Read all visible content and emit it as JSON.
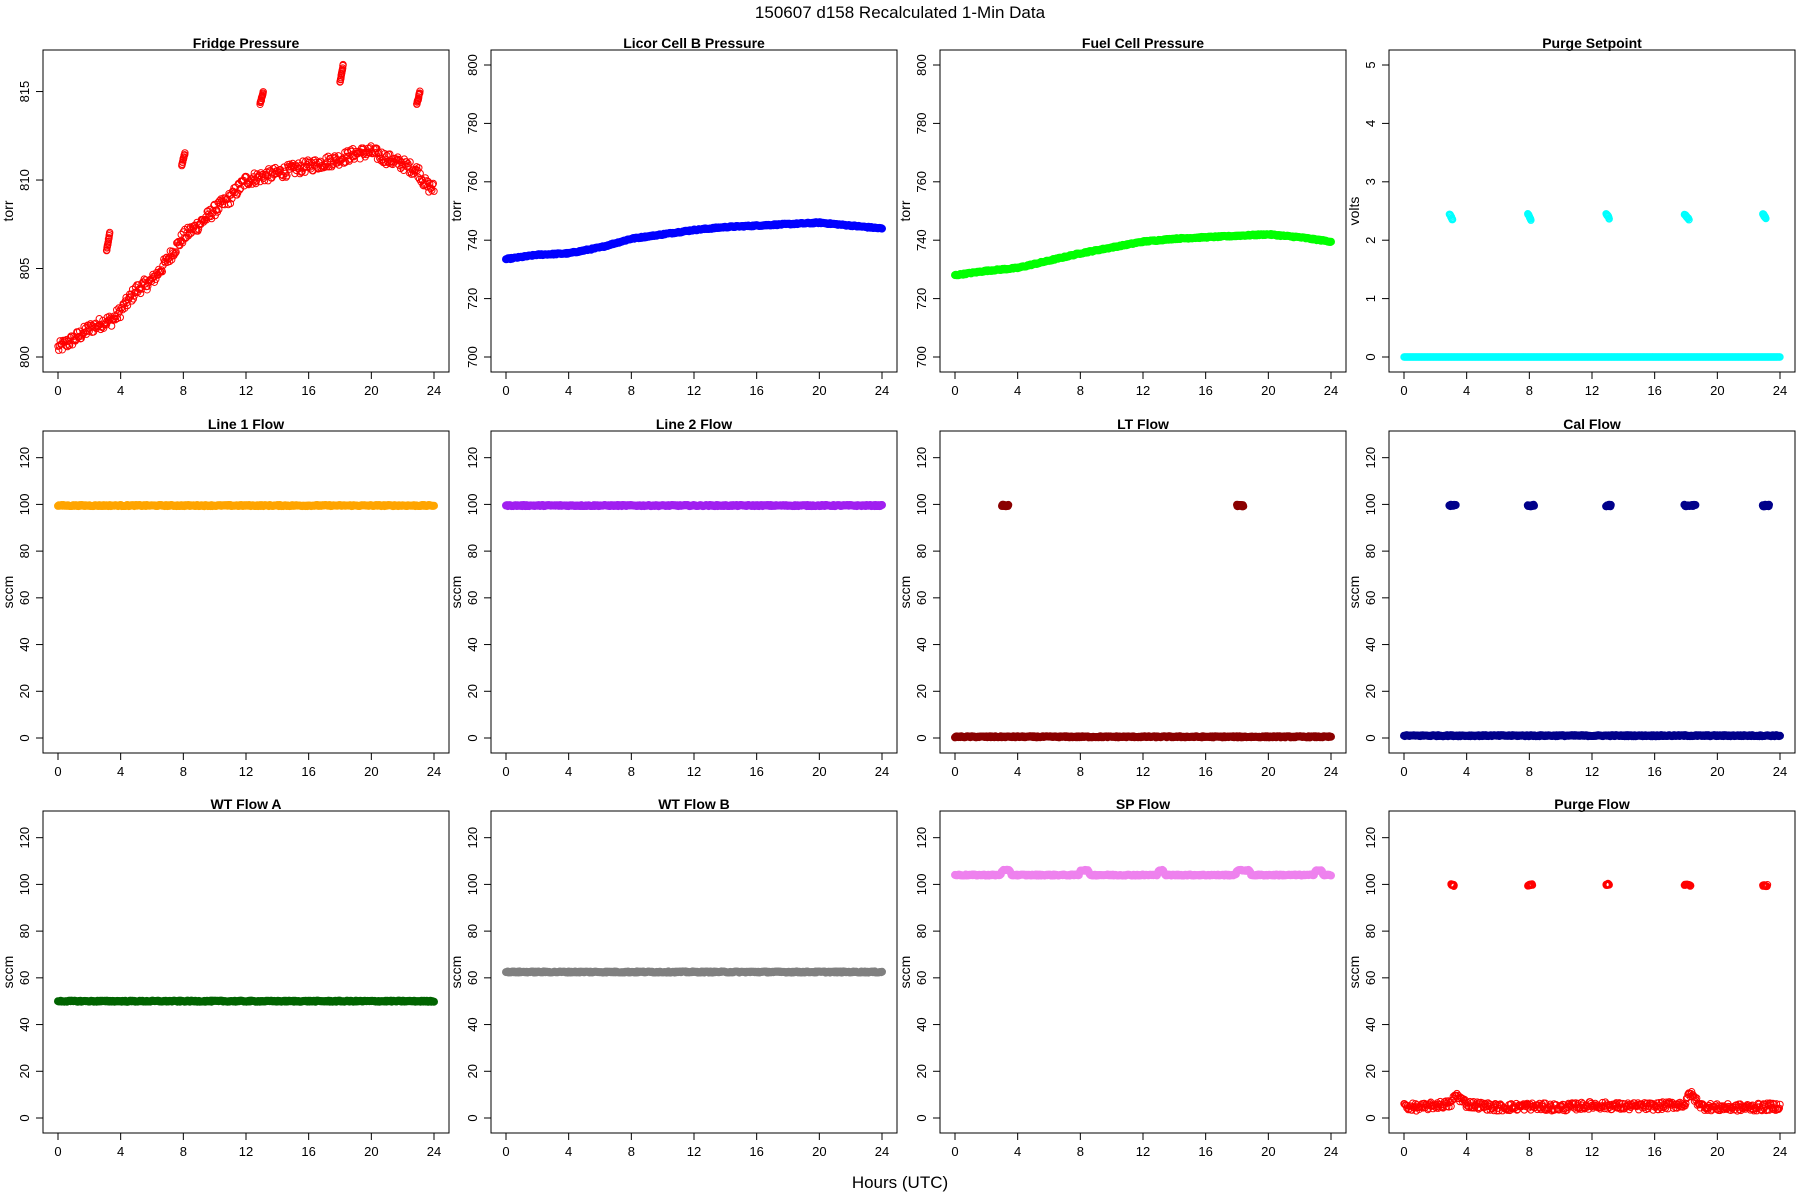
{
  "title": "150607   d158   Recalculated 1-Min Data",
  "xlabel": "Hours (UTC)",
  "chart_data": [
    {
      "type": "scatter",
      "title": "Fridge Pressure",
      "ylabel": "torr",
      "xlim": [
        0,
        24
      ],
      "ylim": [
        800,
        816.5
      ],
      "yticks": [
        800,
        805,
        810,
        815
      ],
      "xticks": [
        0,
        4,
        8,
        12,
        16,
        20,
        24
      ],
      "color": "#ff0000",
      "marker": "open-circle",
      "series": [
        {
          "x": [
            0,
            1,
            2,
            3,
            3.5,
            4,
            5,
            6,
            7,
            8,
            9,
            10,
            11,
            12,
            13,
            14,
            15,
            16,
            17,
            18,
            19,
            20,
            21,
            22,
            23,
            23.5,
            24
          ],
          "y": [
            800.5,
            801,
            801.6,
            802,
            802.1,
            802.6,
            803.8,
            804.3,
            805.5,
            806.8,
            807.5,
            808.3,
            809,
            810,
            810.2,
            810.4,
            810.6,
            810.8,
            811,
            811.2,
            811.5,
            811.6,
            811.2,
            810.9,
            810.5,
            809.7,
            809.5
          ]
        }
      ],
      "outliers": [
        {
          "x": [
            3.1,
            3.2,
            3.3
          ],
          "y": [
            806,
            806.5,
            807
          ]
        },
        {
          "x": [
            7.9,
            8.0,
            8.1
          ],
          "y": [
            810.8,
            811.2,
            811.5
          ]
        },
        {
          "x": [
            12.9,
            13.0,
            13.1
          ],
          "y": [
            814.3,
            814.6,
            815
          ]
        },
        {
          "x": [
            18.0,
            18.1,
            18.2
          ],
          "y": [
            815.5,
            816,
            816.5
          ]
        },
        {
          "x": [
            22.9,
            23.0,
            23.1
          ],
          "y": [
            814.3,
            814.6,
            815
          ]
        }
      ]
    },
    {
      "type": "scatter",
      "title": "Licor Cell B Pressure",
      "ylabel": "torr",
      "xlim": [
        0,
        24
      ],
      "ylim": [
        700,
        800
      ],
      "yticks": [
        700,
        720,
        740,
        760,
        780,
        800
      ],
      "xticks": [
        0,
        4,
        8,
        12,
        16,
        20,
        24
      ],
      "color": "#0000ff",
      "marker": "filled",
      "series": [
        {
          "x": [
            0,
            2,
            4,
            6,
            8,
            10,
            12,
            14,
            16,
            18,
            20,
            22,
            24
          ],
          "y": [
            733.5,
            735,
            735.5,
            737.5,
            740.5,
            742,
            743.5,
            744.5,
            745,
            745.5,
            746,
            745,
            744
          ]
        }
      ]
    },
    {
      "type": "scatter",
      "title": "Fuel Cell Pressure",
      "ylabel": "torr",
      "xlim": [
        0,
        24
      ],
      "ylim": [
        700,
        800
      ],
      "yticks": [
        700,
        720,
        740,
        760,
        780,
        800
      ],
      "xticks": [
        0,
        4,
        8,
        12,
        16,
        20,
        24
      ],
      "color": "#00ff00",
      "marker": "filled",
      "series": [
        {
          "x": [
            0,
            2,
            4,
            6,
            8,
            10,
            12,
            14,
            16,
            18,
            20,
            22,
            24
          ],
          "y": [
            728,
            729.5,
            730.5,
            733,
            735.5,
            737.5,
            739.5,
            740.5,
            741,
            741.5,
            742,
            741,
            739.5
          ]
        }
      ]
    },
    {
      "type": "scatter",
      "title": "Purge Setpoint",
      "ylabel": "volts",
      "xlim": [
        0,
        24
      ],
      "ylim": [
        0,
        5
      ],
      "yticks": [
        0,
        1,
        2,
        3,
        4,
        5
      ],
      "xticks": [
        0,
        4,
        8,
        12,
        16,
        20,
        24
      ],
      "color": "#00ffff",
      "marker": "open-circle",
      "series": [
        {
          "x": [
            0,
            24
          ],
          "y": [
            0,
            0
          ]
        }
      ],
      "outliers": [
        {
          "x": [
            2.9,
            3.1
          ],
          "y": [
            2.45,
            2.35
          ]
        },
        {
          "x": [
            7.9,
            8.1
          ],
          "y": [
            2.45,
            2.35
          ]
        },
        {
          "x": [
            12.9,
            13.1
          ],
          "y": [
            2.45,
            2.38
          ]
        },
        {
          "x": [
            17.9,
            18.2
          ],
          "y": [
            2.45,
            2.35
          ]
        },
        {
          "x": [
            22.9,
            23.1
          ],
          "y": [
            2.45,
            2.38
          ]
        }
      ]
    },
    {
      "type": "scatter",
      "title": "Line 1 Flow",
      "ylabel": "sccm",
      "xlim": [
        0,
        24
      ],
      "ylim": [
        0,
        125
      ],
      "yticks": [
        0,
        20,
        40,
        60,
        80,
        100,
        120
      ],
      "xticks": [
        0,
        4,
        8,
        12,
        16,
        20,
        24
      ],
      "color": "#ffa500",
      "marker": "filled",
      "series": [
        {
          "x": [
            0,
            24
          ],
          "y": [
            99.5,
            99.5
          ]
        }
      ]
    },
    {
      "type": "scatter",
      "title": "Line 2 Flow",
      "ylabel": "sccm",
      "xlim": [
        0,
        24
      ],
      "ylim": [
        0,
        125
      ],
      "yticks": [
        0,
        20,
        40,
        60,
        80,
        100,
        120
      ],
      "xticks": [
        0,
        4,
        8,
        12,
        16,
        20,
        24
      ],
      "color": "#a020f0",
      "marker": "filled",
      "series": [
        {
          "x": [
            0,
            24
          ],
          "y": [
            99.5,
            99.5
          ]
        }
      ]
    },
    {
      "type": "scatter",
      "title": "LT Flow",
      "ylabel": "sccm",
      "xlim": [
        0,
        24
      ],
      "ylim": [
        0,
        125
      ],
      "yticks": [
        0,
        20,
        40,
        60,
        80,
        100,
        120
      ],
      "xticks": [
        0,
        4,
        8,
        12,
        16,
        20,
        24
      ],
      "color": "#8b0000",
      "marker": "filled",
      "series": [
        {
          "x": [
            0,
            24
          ],
          "y": [
            0.5,
            0.5
          ]
        }
      ],
      "outliers": [
        {
          "x": [
            3.0,
            3.4
          ],
          "y": [
            99.5,
            99.5
          ]
        },
        {
          "x": [
            18.0,
            18.4
          ],
          "y": [
            99.5,
            99.5
          ]
        }
      ]
    },
    {
      "type": "scatter",
      "title": "Cal Flow",
      "ylabel": "sccm",
      "xlim": [
        0,
        24
      ],
      "ylim": [
        0,
        125
      ],
      "yticks": [
        0,
        20,
        40,
        60,
        80,
        100,
        120
      ],
      "xticks": [
        0,
        4,
        8,
        12,
        16,
        20,
        24
      ],
      "color": "#00008b",
      "marker": "filled",
      "series": [
        {
          "x": [
            0,
            24
          ],
          "y": [
            1,
            1
          ]
        }
      ],
      "outliers": [
        {
          "x": [
            2.9,
            3.3
          ],
          "y": [
            99.5,
            99.5
          ]
        },
        {
          "x": [
            7.9,
            8.3
          ],
          "y": [
            99.5,
            99.5
          ]
        },
        {
          "x": [
            12.9,
            13.2
          ],
          "y": [
            99.5,
            99.5
          ]
        },
        {
          "x": [
            17.9,
            18.6
          ],
          "y": [
            99.5,
            99.5
          ]
        },
        {
          "x": [
            22.9,
            23.3
          ],
          "y": [
            99.5,
            99.5
          ]
        }
      ]
    },
    {
      "type": "scatter",
      "title": "WT Flow A",
      "ylabel": "sccm",
      "xlim": [
        0,
        24
      ],
      "ylim": [
        0,
        125
      ],
      "yticks": [
        0,
        20,
        40,
        60,
        80,
        100,
        120
      ],
      "xticks": [
        0,
        4,
        8,
        12,
        16,
        20,
        24
      ],
      "color": "#006400",
      "marker": "filled",
      "series": [
        {
          "x": [
            0,
            24
          ],
          "y": [
            50,
            50
          ]
        }
      ]
    },
    {
      "type": "scatter",
      "title": "WT Flow B",
      "ylabel": "sccm",
      "xlim": [
        0,
        24
      ],
      "ylim": [
        0,
        125
      ],
      "yticks": [
        0,
        20,
        40,
        60,
        80,
        100,
        120
      ],
      "xticks": [
        0,
        4,
        8,
        12,
        16,
        20,
        24
      ],
      "color": "#808080",
      "marker": "filled",
      "series": [
        {
          "x": [
            0,
            24
          ],
          "y": [
            62.5,
            62.5
          ]
        }
      ]
    },
    {
      "type": "scatter",
      "title": "SP Flow",
      "ylabel": "sccm",
      "xlim": [
        0,
        24
      ],
      "ylim": [
        0,
        125
      ],
      "yticks": [
        0,
        20,
        40,
        60,
        80,
        100,
        120
      ],
      "xticks": [
        0,
        4,
        8,
        12,
        16,
        20,
        24
      ],
      "color": "#ee82ee",
      "marker": "filled",
      "series": [
        {
          "x": [
            0,
            2.9,
            3.0,
            3.5,
            3.6,
            7.9,
            8.0,
            8.5,
            8.6,
            12.9,
            13.0,
            13.3,
            13.4,
            17.9,
            18.0,
            18.8,
            18.9,
            22.9,
            23.0,
            23.4,
            23.5,
            24
          ],
          "y": [
            104,
            104,
            106,
            106,
            104,
            104,
            106,
            106,
            104,
            104,
            106,
            106,
            104,
            104,
            106,
            106,
            104,
            104,
            106,
            106,
            104,
            104
          ]
        }
      ]
    },
    {
      "type": "scatter",
      "title": "Purge Flow",
      "ylabel": "sccm",
      "xlim": [
        0,
        24
      ],
      "ylim": [
        0,
        125
      ],
      "yticks": [
        0,
        20,
        40,
        60,
        80,
        100,
        120
      ],
      "xticks": [
        0,
        4,
        8,
        12,
        16,
        20,
        24
      ],
      "color": "#ff0000",
      "marker": "open-circle",
      "series": [
        {
          "x": [
            0,
            1,
            2,
            3,
            3.3,
            4,
            6,
            8,
            10,
            12,
            14,
            16,
            18,
            18.2,
            19,
            20,
            22,
            24
          ],
          "y": [
            5,
            4.5,
            5.5,
            6,
            10,
            6,
            4.5,
            5,
            4.5,
            5.5,
            5,
            5,
            6,
            11,
            5,
            4.5,
            4.5,
            5
          ]
        }
      ],
      "outliers": [
        {
          "x": [
            3.0,
            3.2
          ],
          "y": [
            100,
            99.5
          ]
        },
        {
          "x": [
            7.9,
            8.2
          ],
          "y": [
            99.5,
            100
          ]
        },
        {
          "x": [
            12.9,
            13.1
          ],
          "y": [
            100,
            100
          ]
        },
        {
          "x": [
            17.9,
            18.3
          ],
          "y": [
            100,
            99.5
          ]
        },
        {
          "x": [
            22.9,
            23.2
          ],
          "y": [
            99.5,
            99.5
          ]
        }
      ]
    }
  ]
}
